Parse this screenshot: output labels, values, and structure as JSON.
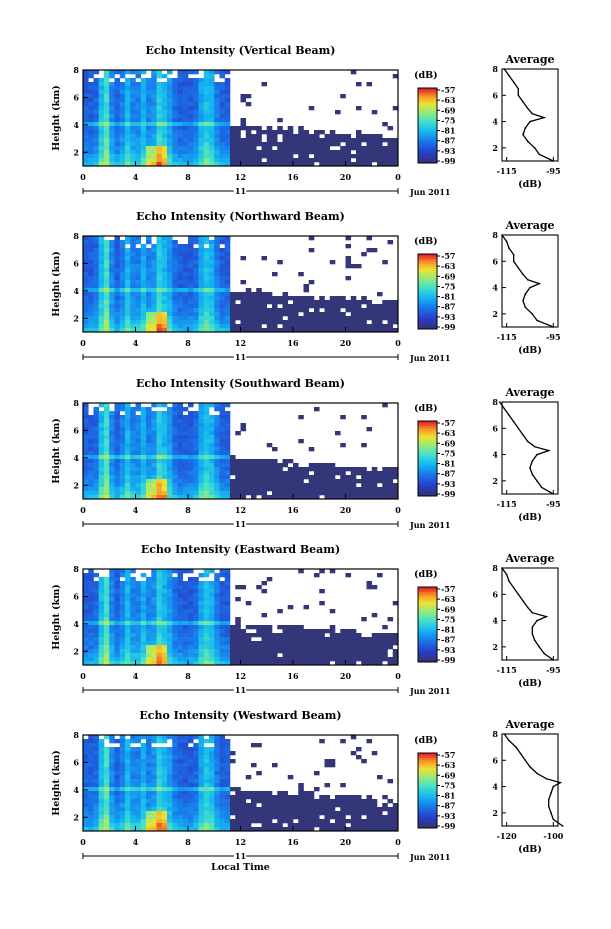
{
  "chart_data": [
    {
      "type": "heatmap",
      "title": "Echo Intensity (Vertical Beam)",
      "ylabel": "Height (km)",
      "xticks": [
        "0",
        "4",
        "8",
        "12",
        "16",
        "20",
        "0"
      ],
      "day_label": "11",
      "date_label": "Jun 2011",
      "yticks": [
        "2",
        "4",
        "6",
        "8"
      ],
      "colorbar": {
        "unit": "(dB)",
        "ticks": [
          "-57",
          "-63",
          "-69",
          "-75",
          "-81",
          "-87",
          "-93",
          "-99"
        ]
      },
      "profile": {
        "title": "Average",
        "xlabel": "(dB)",
        "xticks": [
          "-115",
          "-95"
        ],
        "yticks": [
          "2",
          "4",
          "6",
          "8"
        ],
        "heights": [
          1.0,
          1.5,
          2.0,
          2.5,
          3.0,
          3.5,
          4.0,
          4.3,
          4.6,
          5.0,
          5.5,
          6.0,
          6.5,
          7.0,
          7.5,
          8.0
        ],
        "values": [
          -95,
          -101,
          -103,
          -106,
          -108,
          -107,
          -105,
          -99,
          -104,
          -106,
          -108,
          -110,
          -110,
          -112,
          -114,
          -116
        ]
      }
    },
    {
      "type": "heatmap",
      "title": "Echo Intensity (Northward Beam)",
      "ylabel": "Height (km)",
      "xticks": [
        "0",
        "4",
        "8",
        "12",
        "16",
        "20",
        "0"
      ],
      "day_label": "11",
      "date_label": "Jun 2011",
      "yticks": [
        "2",
        "4",
        "6",
        "8"
      ],
      "colorbar": {
        "unit": "(dB)",
        "ticks": [
          "-57",
          "-63",
          "-69",
          "-75",
          "-81",
          "-87",
          "-93",
          "-99"
        ]
      },
      "profile": {
        "title": "Average",
        "xlabel": "(dB)",
        "xticks": [
          "-115",
          "-95"
        ],
        "yticks": [
          "2",
          "4",
          "6",
          "8"
        ],
        "heights": [
          1.0,
          1.5,
          2.0,
          2.5,
          3.0,
          3.5,
          4.0,
          4.3,
          4.6,
          5.0,
          5.5,
          6.0,
          6.5,
          7.0,
          7.5,
          8.0
        ],
        "values": [
          -95,
          -102,
          -104,
          -107,
          -108,
          -107,
          -105,
          -101,
          -106,
          -108,
          -110,
          -112,
          -112,
          -114,
          -115,
          -117
        ]
      }
    },
    {
      "type": "heatmap",
      "title": "Echo Intensity (Southward Beam)",
      "ylabel": "Height (km)",
      "xticks": [
        "0",
        "4",
        "8",
        "12",
        "16",
        "20",
        "0"
      ],
      "day_label": "11",
      "date_label": "Jun 2011",
      "yticks": [
        "2",
        "4",
        "6",
        "8"
      ],
      "colorbar": {
        "unit": "(dB)",
        "ticks": [
          "-57",
          "-63",
          "-69",
          "-75",
          "-81",
          "-87",
          "-93",
          "-99"
        ]
      },
      "profile": {
        "title": "Average",
        "xlabel": "(dB)",
        "xticks": [
          "-115",
          "-95"
        ],
        "yticks": [
          "2",
          "4",
          "6",
          "8"
        ],
        "heights": [
          1.0,
          1.5,
          2.0,
          2.5,
          3.0,
          3.5,
          4.0,
          4.3,
          4.6,
          5.0,
          5.5,
          6.0,
          6.5,
          7.0,
          7.5,
          8.0
        ],
        "values": [
          -95,
          -100,
          -102,
          -104,
          -105,
          -104,
          -102,
          -97,
          -103,
          -106,
          -108,
          -110,
          -112,
          -114,
          -116,
          -118
        ]
      }
    },
    {
      "type": "heatmap",
      "title": "Echo Intensity (Eastward Beam)",
      "ylabel": "Height (km)",
      "xticks": [
        "0",
        "4",
        "8",
        "12",
        "16",
        "20",
        "0"
      ],
      "day_label": "11",
      "date_label": "Jun 2011",
      "yticks": [
        "2",
        "4",
        "6",
        "8"
      ],
      "colorbar": {
        "unit": "(dB)",
        "ticks": [
          "-57",
          "-63",
          "-69",
          "-75",
          "-81",
          "-87",
          "-93",
          "-99"
        ]
      },
      "profile": {
        "title": "Average",
        "xlabel": "(dB)",
        "xticks": [
          "-115",
          "-95"
        ],
        "yticks": [
          "2",
          "4",
          "6",
          "8"
        ],
        "heights": [
          1.0,
          1.5,
          2.0,
          2.5,
          3.0,
          3.5,
          4.0,
          4.3,
          4.6,
          5.0,
          5.5,
          6.0,
          6.5,
          7.0,
          7.5,
          8.0
        ],
        "values": [
          -95,
          -99,
          -101,
          -103,
          -104,
          -104,
          -102,
          -98,
          -104,
          -106,
          -108,
          -110,
          -112,
          -114,
          -115,
          -117
        ]
      }
    },
    {
      "type": "heatmap",
      "title": "Echo Intensity (Westward Beam)",
      "ylabel": "Height (km)",
      "xticks": [
        "0",
        "4",
        "8",
        "12",
        "16",
        "20",
        "0"
      ],
      "day_label": "11",
      "date_label": "Jun 2011",
      "xlabel": "Local Time",
      "yticks": [
        "2",
        "4",
        "6",
        "8"
      ],
      "colorbar": {
        "unit": "(dB)",
        "ticks": [
          "-57",
          "-63",
          "-69",
          "-75",
          "-81",
          "-87",
          "-93",
          "-99"
        ]
      },
      "profile": {
        "title": "Average",
        "xlabel": "(dB)",
        "xticks": [
          "-120",
          "-100"
        ],
        "yticks": [
          "2",
          "4",
          "6",
          "8"
        ],
        "heights": [
          1.0,
          1.5,
          2.0,
          2.5,
          3.0,
          3.5,
          4.0,
          4.3,
          4.6,
          5.0,
          5.5,
          6.0,
          6.5,
          7.0,
          7.5,
          8.0
        ],
        "values": [
          -96,
          -100,
          -101,
          -102,
          -102,
          -101,
          -100,
          -97,
          -103,
          -107,
          -110,
          -112,
          -114,
          -116,
          -119,
          -121
        ]
      }
    }
  ]
}
